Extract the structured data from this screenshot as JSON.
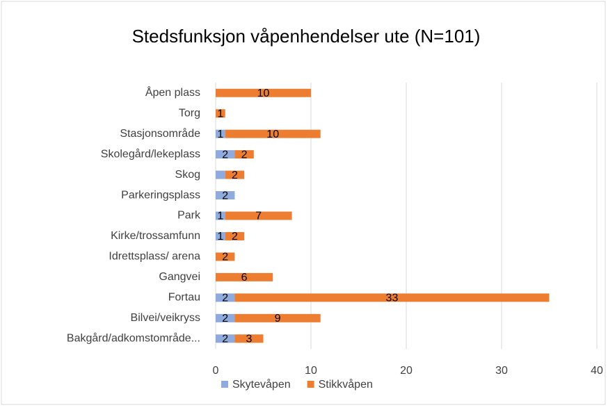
{
  "chart_data": {
    "type": "stacked-barh",
    "title": "Stedsfunksjon våpenhendelser ute  (N=101)",
    "categories": [
      "Åpen plass",
      "Torg",
      "Stasjonsområde",
      "Skolegård/lekeplass",
      "Skog",
      "Parkeringsplass",
      "Park",
      "Kirke/trossamfunn",
      "Idrettsplass/ arena",
      "Gangvei",
      "Fortau",
      "Bilvei/veikryss",
      "Bakgård/adkomstområde..."
    ],
    "series": [
      {
        "name": "Skytevåpen",
        "color": "#8faadc",
        "values": [
          null,
          null,
          1,
          2,
          1,
          2,
          1,
          1,
          null,
          null,
          2,
          2,
          2
        ],
        "value_labels": [
          null,
          null,
          "1",
          "2",
          null,
          "2",
          "1",
          "1",
          null,
          null,
          "2",
          "2",
          "2"
        ]
      },
      {
        "name": "Stikkvåpen",
        "color": "#ed7d31",
        "values": [
          10,
          1,
          10,
          2,
          2,
          null,
          7,
          2,
          2,
          6,
          33,
          9,
          3
        ]
      }
    ],
    "xlim": [
      0,
      40
    ],
    "xticks": [
      0,
      10,
      20,
      30,
      40
    ],
    "grid": true,
    "legend": "bottom"
  }
}
